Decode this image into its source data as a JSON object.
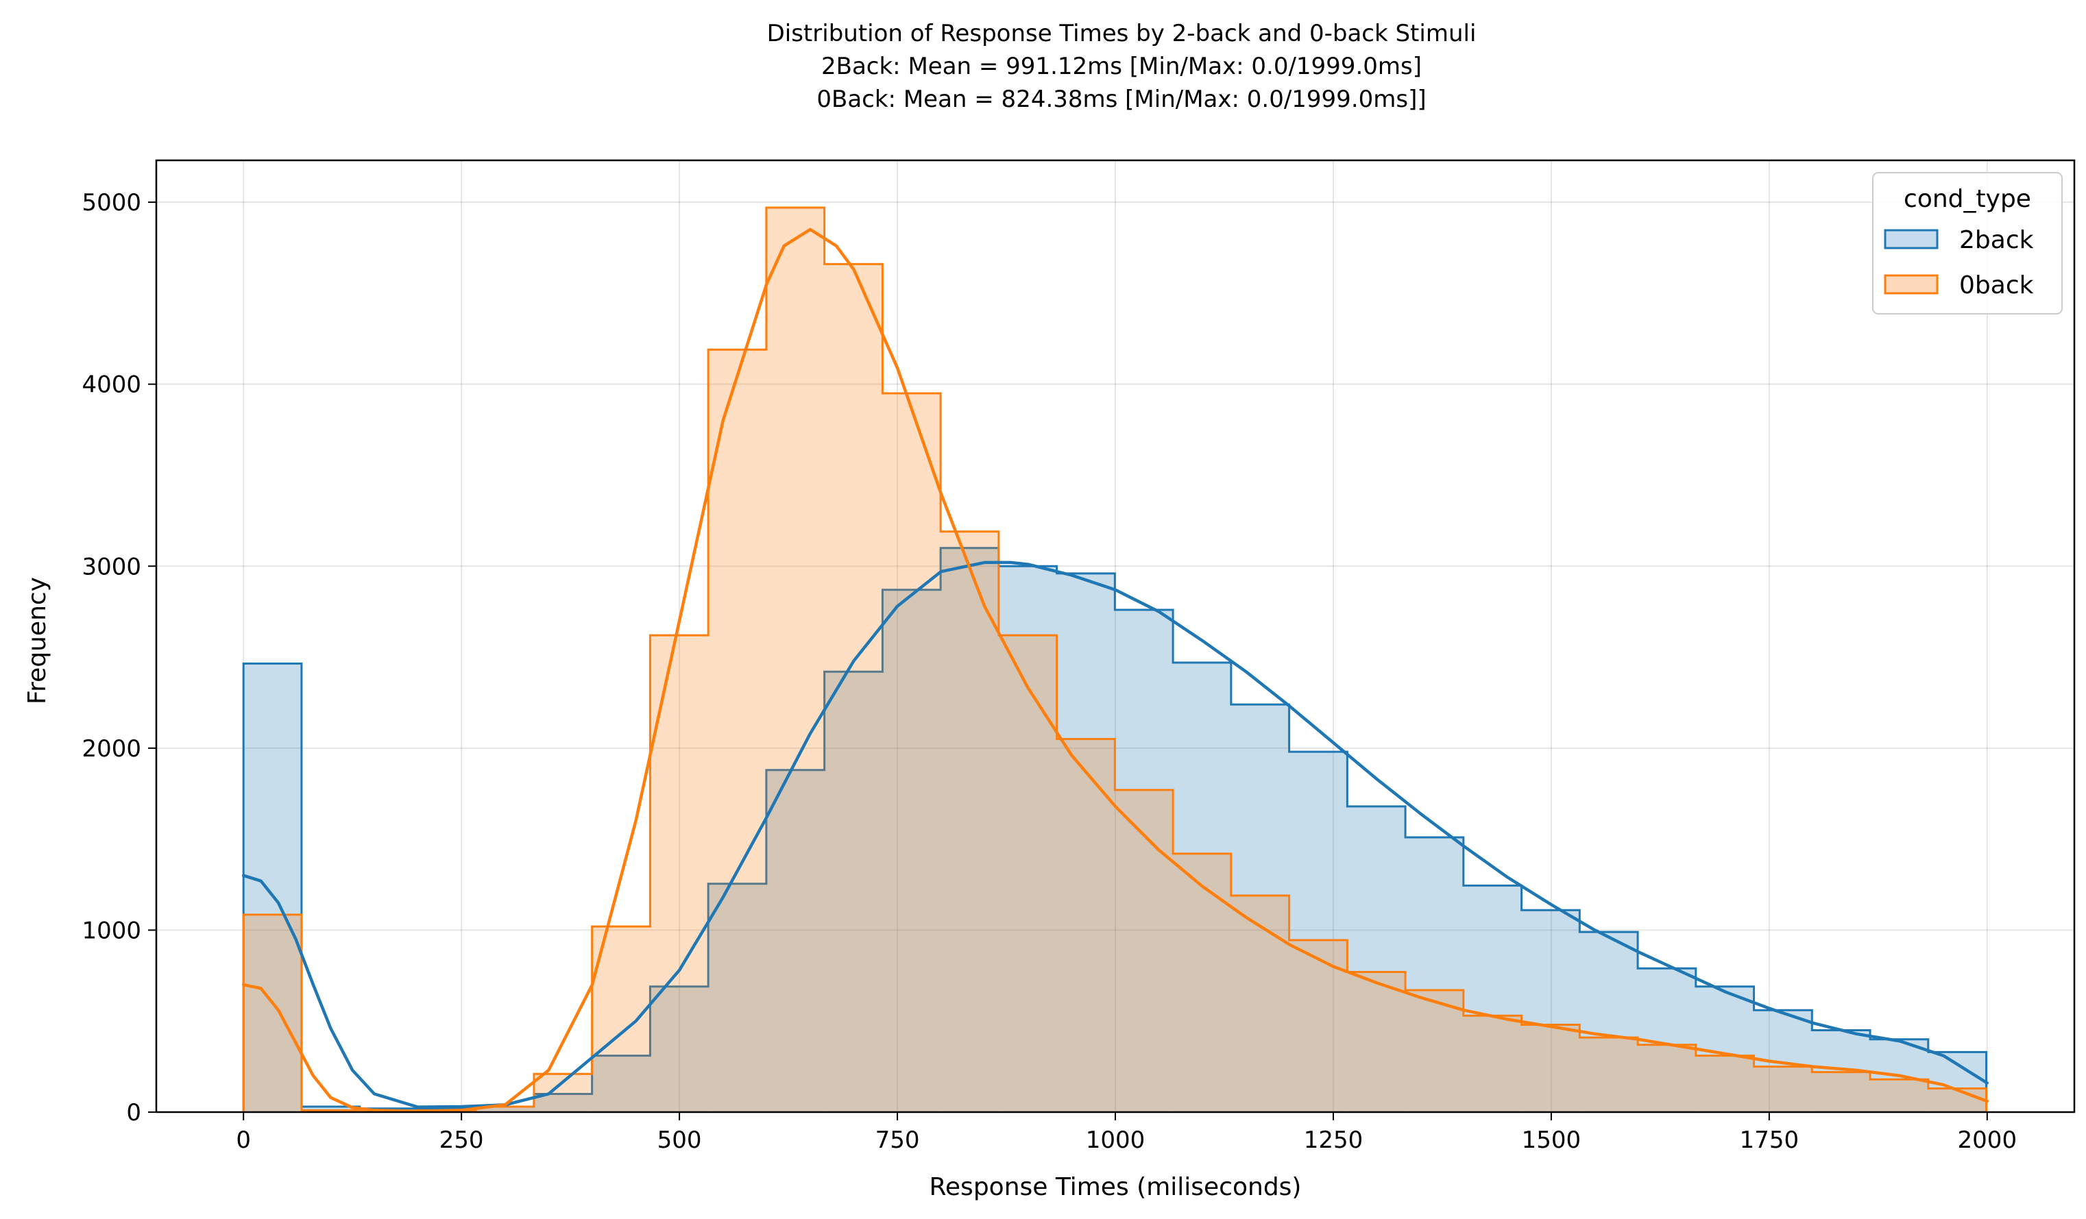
{
  "chart_data": {
    "type": "histogram",
    "title_lines": [
      "Distribution of Response Times by 2-back and 0-back Stimuli",
      "2Back: Mean = 991.12ms [Min/Max: 0.0/1999.0ms]",
      "0Back: Mean = 824.38ms [Min/Max: 0.0/1999.0ms]]"
    ],
    "xlabel": "Response Times (miliseconds)",
    "ylabel": "Frequency",
    "xlim": [
      -100,
      2100
    ],
    "ylim": [
      0,
      5230
    ],
    "xticks": [
      0,
      250,
      500,
      750,
      1000,
      1250,
      1500,
      1750,
      2000
    ],
    "xtick_labels": [
      "0",
      "250",
      "500",
      "750",
      "1000",
      "1250",
      "1500",
      "1750",
      "2000"
    ],
    "yticks": [
      0,
      1000,
      2000,
      3000,
      4000,
      5000
    ],
    "ytick_labels": [
      "0",
      "1000",
      "2000",
      "3000",
      "4000",
      "5000"
    ],
    "grid": true,
    "legend": {
      "title": "cond_type",
      "placement": "upper right"
    },
    "bins": {
      "start": 0,
      "width": 66.6333,
      "count": 30
    },
    "series": [
      {
        "name": "2back",
        "color": "#1f77b4",
        "fill": "#c6dcee",
        "counts": [
          2465,
          30,
          20,
          20,
          30,
          100,
          310,
          690,
          1255,
          1880,
          2420,
          2870,
          3100,
          3000,
          2960,
          2760,
          2470,
          2240,
          1980,
          1680,
          1510,
          1245,
          1110,
          990,
          790,
          690,
          560,
          450,
          400,
          330
        ],
        "kde_x": [
          0,
          20,
          40,
          60,
          80,
          100,
          125,
          150,
          200,
          250,
          300,
          350,
          400,
          450,
          500,
          550,
          600,
          650,
          700,
          750,
          800,
          850,
          880,
          900,
          950,
          1000,
          1050,
          1100,
          1150,
          1200,
          1250,
          1300,
          1350,
          1400,
          1450,
          1500,
          1550,
          1600,
          1650,
          1700,
          1750,
          1800,
          1850,
          1900,
          1950,
          2000
        ],
        "kde_y": [
          1300,
          1270,
          1150,
          950,
          700,
          460,
          230,
          100,
          28,
          30,
          40,
          100,
          300,
          500,
          780,
          1180,
          1620,
          2080,
          2480,
          2780,
          2970,
          3020,
          3020,
          3010,
          2950,
          2870,
          2750,
          2590,
          2420,
          2230,
          2030,
          1830,
          1640,
          1460,
          1290,
          1140,
          1000,
          880,
          770,
          660,
          570,
          490,
          430,
          390,
          310,
          160
        ]
      },
      {
        "name": "0back",
        "color": "#ff7f0e",
        "fill": "#fed8ba",
        "counts": [
          1085,
          10,
          5,
          10,
          30,
          210,
          1020,
          2620,
          4190,
          4970,
          4660,
          3950,
          3190,
          2620,
          2050,
          1770,
          1420,
          1190,
          945,
          770,
          670,
          530,
          480,
          410,
          370,
          310,
          250,
          220,
          180,
          130
        ],
        "kde_x": [
          0,
          20,
          40,
          60,
          80,
          100,
          125,
          150,
          200,
          250,
          300,
          350,
          400,
          450,
          500,
          550,
          600,
          620,
          650,
          680,
          700,
          750,
          800,
          850,
          900,
          950,
          1000,
          1050,
          1100,
          1150,
          1200,
          1250,
          1300,
          1350,
          1400,
          1450,
          1500,
          1550,
          1600,
          1650,
          1700,
          1750,
          1800,
          1850,
          1900,
          1950,
          2000
        ],
        "kde_y": [
          700,
          680,
          560,
          380,
          200,
          80,
          25,
          10,
          5,
          10,
          40,
          230,
          700,
          1600,
          2700,
          3800,
          4550,
          4760,
          4850,
          4760,
          4630,
          4090,
          3400,
          2780,
          2330,
          1960,
          1680,
          1440,
          1240,
          1070,
          920,
          800,
          710,
          630,
          560,
          510,
          470,
          430,
          400,
          360,
          320,
          280,
          250,
          230,
          200,
          150,
          60
        ]
      }
    ]
  }
}
